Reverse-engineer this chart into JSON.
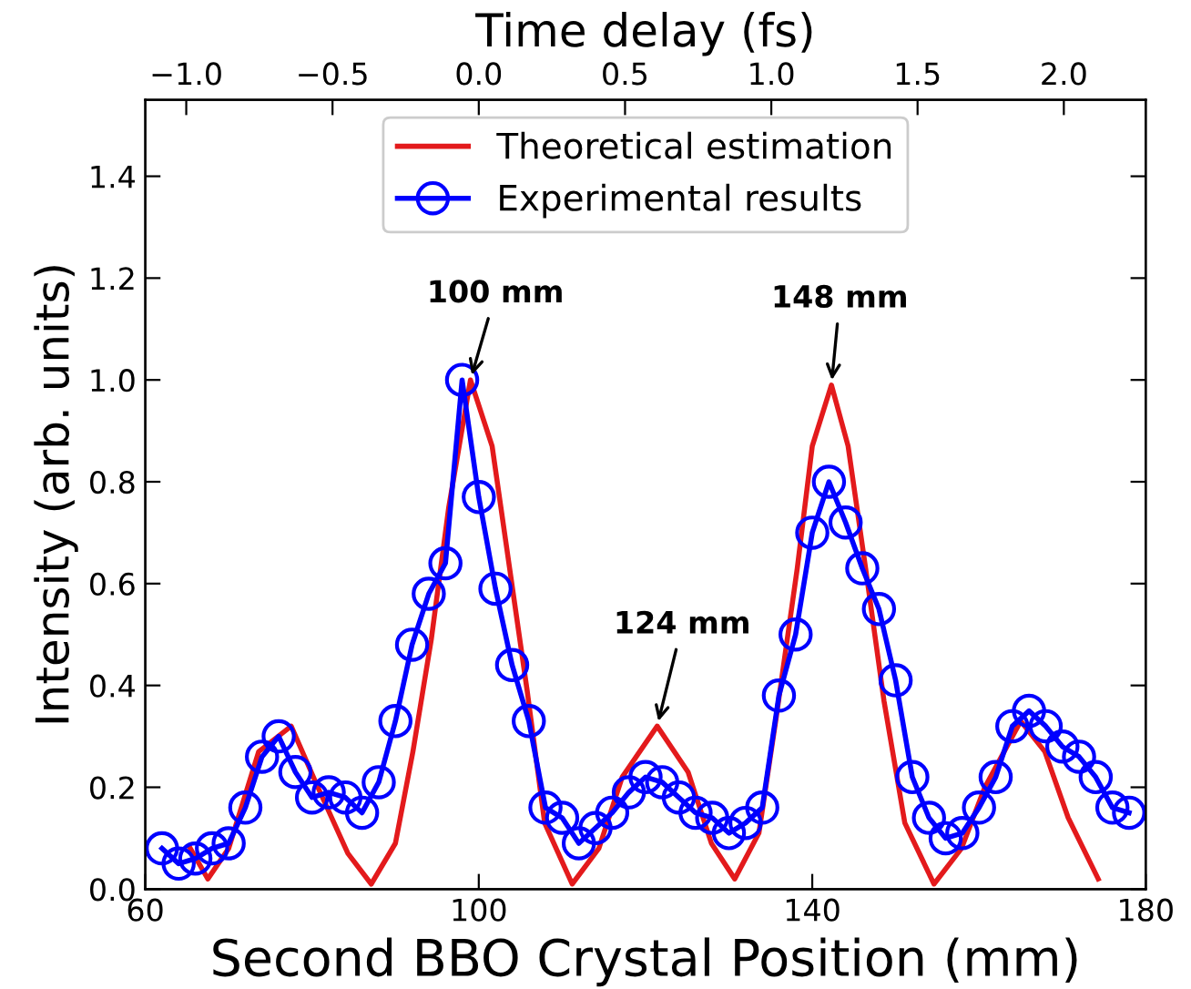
{
  "chart_data": {
    "type": "line",
    "xlabel": "Second BBO Crystal Position (mm)",
    "ylabel": "Intensity (arb. units)",
    "x2label": "Time delay (fs)",
    "xlim": [
      60,
      180
    ],
    "xticks": [
      60,
      100,
      140,
      180
    ],
    "x2lim": [
      -1.14,
      2.28
    ],
    "x2ticks": [
      {
        "value": -1.0,
        "label": "−1.0"
      },
      {
        "value": -0.5,
        "label": "−0.5"
      },
      {
        "value": 0.0,
        "label": "0.0"
      },
      {
        "value": 0.5,
        "label": "0.5"
      },
      {
        "value": 1.0,
        "label": "1.0"
      },
      {
        "value": 1.5,
        "label": "1.5"
      },
      {
        "value": 2.0,
        "label": "2.0"
      }
    ],
    "ylim": [
      0,
      1.55
    ],
    "yticks": [
      {
        "value": 0.0,
        "label": "0.0"
      },
      {
        "value": 0.2,
        "label": "0.2"
      },
      {
        "value": 0.4,
        "label": "0.4"
      },
      {
        "value": 0.6,
        "label": "0.6"
      },
      {
        "value": 0.8,
        "label": "0.8"
      },
      {
        "value": 1.0,
        "label": "1.0"
      },
      {
        "value": 1.2,
        "label": "1.2"
      },
      {
        "value": 1.4,
        "label": "1.4"
      }
    ],
    "grid": false,
    "legend": "top",
    "series": [
      {
        "name": "Theoretical estimation",
        "color": "#e31a1c",
        "marker": "none",
        "x": [
          65.4,
          67.5,
          70,
          73.6,
          77.5,
          80.7,
          84.3,
          87.1,
          90,
          92.1,
          94.3,
          96.4,
          99,
          101.6,
          103.7,
          105.8,
          107.9,
          111.2,
          114.4,
          117.2,
          121.4,
          125.1,
          127.9,
          130.7,
          133.6,
          135.7,
          138.2,
          140,
          142.3,
          144.3,
          146.4,
          148.6,
          151.1,
          154.6,
          157.9,
          160.7,
          165,
          167.9,
          170.7,
          174.3
        ],
        "values": [
          0.08,
          0.02,
          0.08,
          0.27,
          0.32,
          0.2,
          0.07,
          0.01,
          0.09,
          0.27,
          0.49,
          0.75,
          1.0,
          0.87,
          0.63,
          0.39,
          0.13,
          0.01,
          0.08,
          0.22,
          0.32,
          0.23,
          0.09,
          0.02,
          0.11,
          0.34,
          0.63,
          0.87,
          0.99,
          0.87,
          0.63,
          0.37,
          0.13,
          0.01,
          0.08,
          0.2,
          0.33,
          0.27,
          0.14,
          0.02
        ]
      },
      {
        "name": "Experimental results",
        "color": "#0000ff",
        "marker": "circle",
        "x": [
          62,
          64,
          66,
          68,
          70,
          72,
          74,
          76,
          78,
          80,
          82,
          84,
          86,
          88,
          90,
          92,
          94,
          96,
          98,
          100,
          102,
          104,
          106,
          108,
          110,
          112,
          114,
          116,
          118,
          120,
          122,
          124,
          126,
          128,
          130,
          132,
          134,
          136,
          138,
          140,
          142,
          144,
          146,
          148,
          150,
          152,
          154,
          156,
          158,
          160,
          162,
          164,
          166,
          168,
          170,
          172,
          174,
          176,
          178
        ],
        "values": [
          0.08,
          0.05,
          0.06,
          0.08,
          0.09,
          0.16,
          0.26,
          0.3,
          0.23,
          0.18,
          0.19,
          0.18,
          0.15,
          0.21,
          0.33,
          0.48,
          0.58,
          0.64,
          1.0,
          0.77,
          0.59,
          0.44,
          0.33,
          0.16,
          0.14,
          0.09,
          0.12,
          0.15,
          0.19,
          0.22,
          0.21,
          0.18,
          0.15,
          0.14,
          0.11,
          0.13,
          0.16,
          0.38,
          0.5,
          0.7,
          0.8,
          0.72,
          0.63,
          0.55,
          0.41,
          0.22,
          0.14,
          0.1,
          0.11,
          0.16,
          0.22,
          0.32,
          0.35,
          0.32,
          0.28,
          0.26,
          0.22,
          0.16,
          0.15
        ]
      }
    ],
    "annotations": [
      {
        "text": "100 mm",
        "x": 99,
        "y": 1.0
      },
      {
        "text": "124 mm",
        "x": 121.4,
        "y": 0.32
      },
      {
        "text": "148 mm",
        "x": 142.3,
        "y": 0.99
      }
    ]
  }
}
